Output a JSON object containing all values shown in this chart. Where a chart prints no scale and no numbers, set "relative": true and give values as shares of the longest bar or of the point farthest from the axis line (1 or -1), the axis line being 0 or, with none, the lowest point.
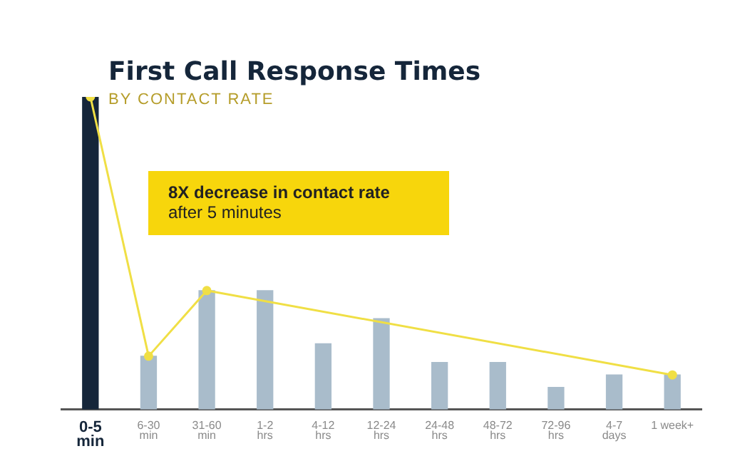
{
  "chart_data": {
    "type": "bar",
    "title": "First Call Response Times",
    "subtitle": "BY CONTACT RATE",
    "annotations": [
      "8X decrease in contact rate",
      "after 5 minutes"
    ],
    "categories": [
      "0-5\nmin",
      "6-30\nmin",
      "31-60\nmin",
      "1-2\nhrs",
      "4-12\nhrs",
      "12-24\nhrs",
      "24-48\nhrs",
      "48-72\nhrs",
      "72-96\nhrs",
      "4-7\ndays",
      "1 week+"
    ],
    "relative": true,
    "marker": "circle",
    "series": [
      {
        "colors": [
          "#15263a",
          "#a9bccb",
          "#a9bccb",
          "#a9bccb",
          "#a9bccb",
          "#a9bccb",
          "#a9bccb",
          "#a9bccb",
          "#a9bccb",
          "#a9bccb",
          "#a9bccb"
        ],
        "values": [
          1,
          0.17,
          0.38,
          0.38,
          0.21,
          0.29,
          0.15,
          0.15,
          0.07,
          0.11,
          0.11
        ]
      },
      {
        "type": "line",
        "color": "#f0df45",
        "values": [
          1,
          0.17,
          0.38,
          null,
          null,
          null,
          null,
          null,
          null,
          null,
          0.11
        ]
      }
    ]
  }
}
